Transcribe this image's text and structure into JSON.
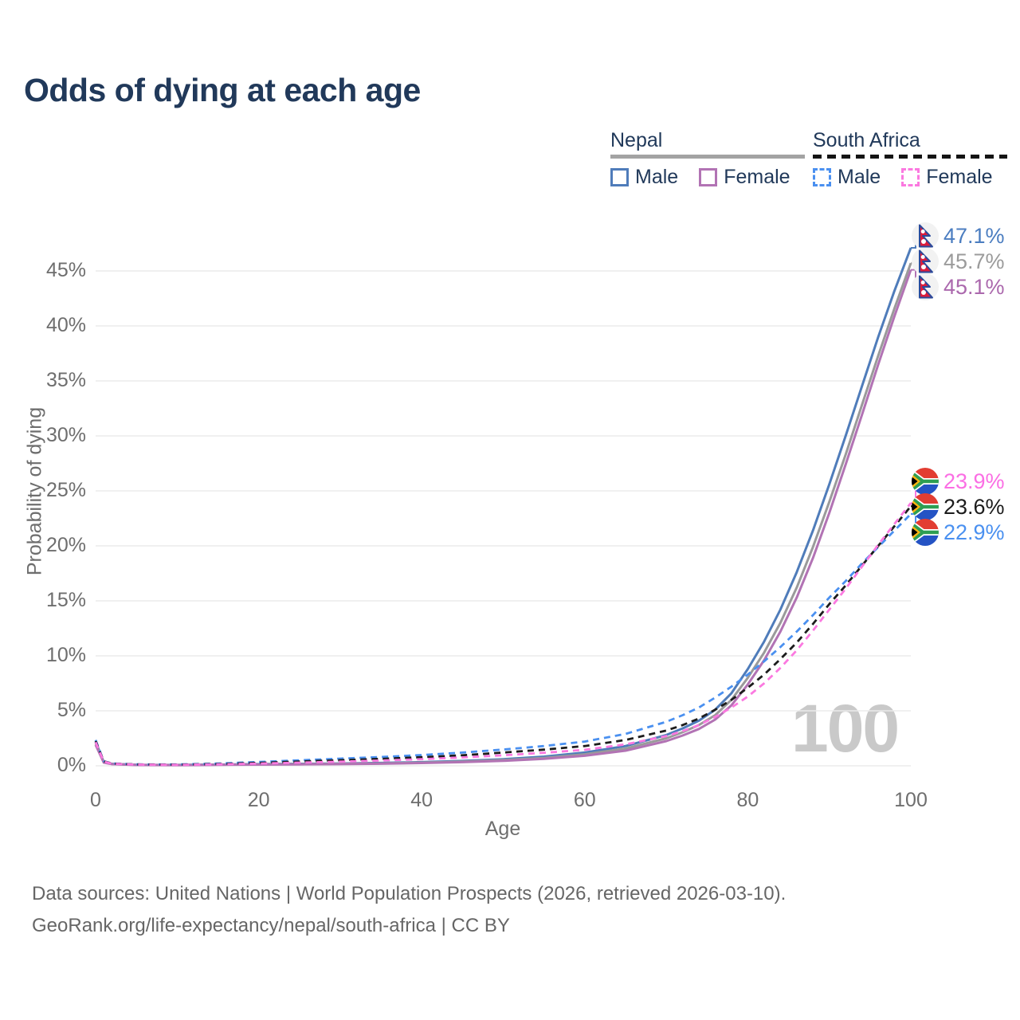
{
  "title": "Odds of dying at each age",
  "watermark": "100",
  "legend": {
    "groups": [
      {
        "label": "Nepal",
        "line_style": "solid",
        "underline_color": "#a3a3a3",
        "items": [
          {
            "label": "Male",
            "color": "#4f7cba"
          },
          {
            "label": "Female",
            "color": "#b273b4"
          }
        ]
      },
      {
        "label": "South Africa",
        "line_style": "dashed",
        "underline_color": "#141414",
        "items": [
          {
            "label": "Male",
            "color": "#4a90f0"
          },
          {
            "label": "Female",
            "color": "#fb79e0"
          }
        ]
      }
    ]
  },
  "chart_data": {
    "type": "line",
    "title": "Odds of dying at each age",
    "xlabel": "Age",
    "ylabel": "Probability of dying",
    "x_ticks": [
      0,
      20,
      40,
      60,
      80,
      100
    ],
    "y_ticks": [
      "0%",
      "5%",
      "10%",
      "15%",
      "20%",
      "25%",
      "30%",
      "35%",
      "40%",
      "45%"
    ],
    "xlim": [
      0,
      100
    ],
    "ylim": [
      0,
      48.5
    ],
    "grid": "horizontal",
    "legend_position": "top-right",
    "x": [
      0,
      1,
      2,
      5,
      10,
      15,
      20,
      25,
      30,
      35,
      40,
      45,
      50,
      55,
      60,
      65,
      70,
      72,
      74,
      76,
      78,
      80,
      82,
      84,
      86,
      88,
      90,
      92,
      94,
      96,
      98,
      100
    ],
    "series": [
      {
        "name": "Nepal Male",
        "color": "#4f7cba",
        "dashed": false,
        "flag": "nepal",
        "end_label": "47.1%",
        "values": [
          2.2,
          0.35,
          0.18,
          0.09,
          0.08,
          0.11,
          0.15,
          0.18,
          0.21,
          0.26,
          0.33,
          0.44,
          0.6,
          0.83,
          1.2,
          1.8,
          2.8,
          3.4,
          4.1,
          5.1,
          6.6,
          8.8,
          11.3,
          14.2,
          17.6,
          21.4,
          25.6,
          30.0,
          34.5,
          39.0,
          43.2,
          47.1
        ]
      },
      {
        "name": "Nepal Both sexes",
        "color": "#9a9a9a",
        "dashed": false,
        "flag": "nepal",
        "end_label": "45.7%",
        "values": [
          2.05,
          0.32,
          0.16,
          0.08,
          0.07,
          0.1,
          0.13,
          0.15,
          0.18,
          0.22,
          0.29,
          0.38,
          0.52,
          0.72,
          1.04,
          1.57,
          2.5,
          3.05,
          3.7,
          4.6,
          6.0,
          8.0,
          10.3,
          13.0,
          16.2,
          19.9,
          24.0,
          28.3,
          32.8,
          37.3,
          41.6,
          45.7
        ]
      },
      {
        "name": "Nepal Female",
        "color": "#b273b4",
        "dashed": false,
        "flag": "nepal",
        "end_label": "45.1%",
        "values": [
          1.9,
          0.29,
          0.15,
          0.07,
          0.06,
          0.09,
          0.11,
          0.13,
          0.15,
          0.19,
          0.25,
          0.33,
          0.45,
          0.63,
          0.91,
          1.38,
          2.25,
          2.75,
          3.35,
          4.2,
          5.5,
          7.4,
          9.6,
          12.2,
          15.3,
          18.9,
          23.0,
          27.4,
          31.9,
          36.5,
          40.9,
          45.1
        ]
      },
      {
        "name": "South Africa Male",
        "color": "#4a90f0",
        "dashed": true,
        "flag": "south-africa",
        "end_label": "22.9%",
        "values": [
          2.35,
          0.42,
          0.22,
          0.13,
          0.12,
          0.2,
          0.35,
          0.5,
          0.65,
          0.8,
          0.98,
          1.2,
          1.48,
          1.8,
          2.2,
          2.9,
          4.0,
          4.6,
          5.3,
          6.2,
          7.2,
          8.3,
          9.5,
          10.8,
          12.2,
          13.7,
          15.3,
          16.8,
          18.4,
          19.9,
          21.4,
          22.9
        ]
      },
      {
        "name": "South Africa Both sexes",
        "color": "#1c1c1c",
        "dashed": true,
        "flag": "south-africa",
        "end_label": "23.6%",
        "values": [
          2.25,
          0.4,
          0.2,
          0.12,
          0.1,
          0.16,
          0.27,
          0.39,
          0.51,
          0.63,
          0.78,
          0.96,
          1.2,
          1.47,
          1.8,
          2.35,
          3.2,
          3.7,
          4.3,
          5.1,
          6.0,
          7.1,
          8.3,
          9.7,
          11.2,
          12.9,
          14.7,
          16.4,
          18.2,
          20.0,
          21.8,
          23.6
        ]
      },
      {
        "name": "South Africa Female",
        "color": "#fb79e0",
        "dashed": true,
        "flag": "south-africa",
        "end_label": "23.9%",
        "values": [
          2.15,
          0.38,
          0.19,
          0.11,
          0.09,
          0.13,
          0.2,
          0.29,
          0.38,
          0.48,
          0.6,
          0.76,
          0.96,
          1.18,
          1.46,
          1.95,
          2.7,
          3.15,
          3.7,
          4.45,
          5.3,
          6.3,
          7.5,
          8.9,
          10.5,
          12.3,
          14.2,
          16.1,
          18.1,
          20.1,
          22.0,
          23.9
        ]
      }
    ]
  },
  "footer": {
    "line1": "Data sources: United Nations | World Population Prospects (2026, retrieved 2026-03-10).",
    "line2": "GeoRank.org/life-expectancy/nepal/south-africa | CC BY"
  }
}
